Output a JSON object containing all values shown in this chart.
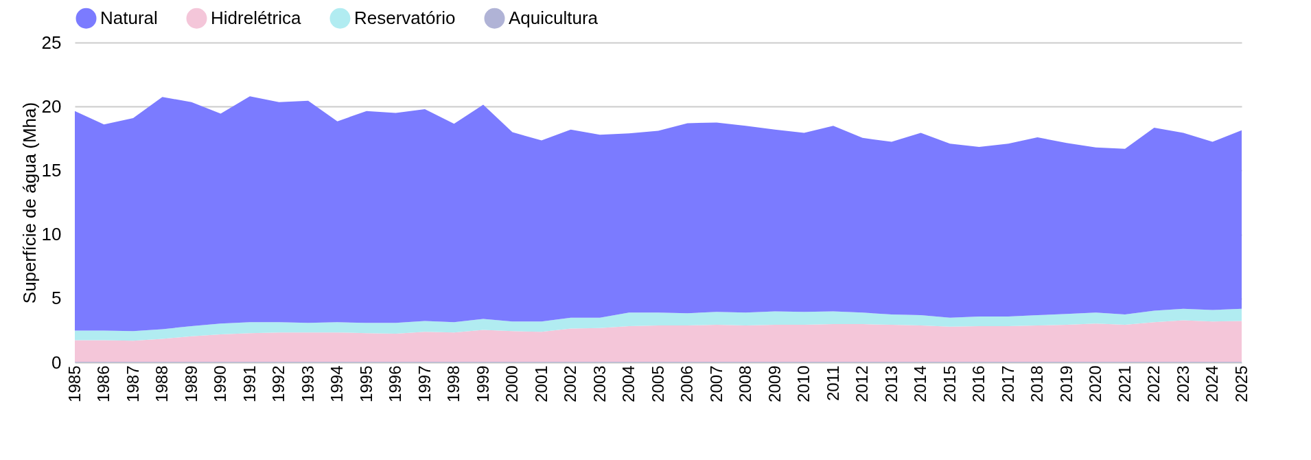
{
  "chart_data": {
    "type": "area",
    "stacked": true,
    "ylabel": "Superfície de água (Mha)",
    "categories": [
      "1985",
      "1986",
      "1987",
      "1988",
      "1989",
      "1990",
      "1991",
      "1992",
      "1993",
      "1994",
      "1995",
      "1996",
      "1997",
      "1998",
      "1999",
      "2000",
      "2001",
      "2002",
      "2003",
      "2004",
      "2005",
      "2006",
      "2007",
      "2008",
      "2009",
      "2010",
      "2011",
      "2012",
      "2013",
      "2014",
      "2015",
      "2016",
      "2017",
      "2018",
      "2019",
      "2020",
      "2021",
      "2022",
      "2023",
      "2024",
      "2025"
    ],
    "series": [
      {
        "name": "Aquicultura",
        "color": "#b0b3d6",
        "values": [
          0.05,
          0.05,
          0.05,
          0.05,
          0.05,
          0.05,
          0.05,
          0.05,
          0.05,
          0.05,
          0.05,
          0.05,
          0.05,
          0.05,
          0.05,
          0.05,
          0.05,
          0.05,
          0.05,
          0.05,
          0.05,
          0.05,
          0.05,
          0.05,
          0.05,
          0.05,
          0.05,
          0.05,
          0.05,
          0.05,
          0.05,
          0.05,
          0.05,
          0.05,
          0.05,
          0.05,
          0.05,
          0.05,
          0.05,
          0.05,
          0.05
        ]
      },
      {
        "name": "Hidrelétrica",
        "color": "#f4c6d9",
        "values": [
          1.7,
          1.7,
          1.65,
          1.8,
          2.0,
          2.15,
          2.25,
          2.3,
          2.3,
          2.3,
          2.25,
          2.2,
          2.35,
          2.3,
          2.5,
          2.4,
          2.35,
          2.6,
          2.65,
          2.8,
          2.85,
          2.85,
          2.9,
          2.85,
          2.9,
          2.9,
          2.95,
          2.95,
          2.9,
          2.85,
          2.75,
          2.8,
          2.8,
          2.85,
          2.9,
          3.0,
          2.9,
          3.1,
          3.25,
          3.15,
          3.2
        ]
      },
      {
        "name": "Reservatório",
        "color": "#b1ecf1",
        "values": [
          0.75,
          0.75,
          0.75,
          0.75,
          0.8,
          0.85,
          0.85,
          0.8,
          0.75,
          0.8,
          0.8,
          0.85,
          0.85,
          0.8,
          0.85,
          0.75,
          0.8,
          0.85,
          0.8,
          1.05,
          1.0,
          0.95,
          1.0,
          1.0,
          1.05,
          1.0,
          1.0,
          0.9,
          0.8,
          0.8,
          0.7,
          0.75,
          0.75,
          0.8,
          0.85,
          0.85,
          0.8,
          0.9,
          0.9,
          0.9,
          0.95
        ]
      },
      {
        "name": "Natural",
        "color": "#7b7bff",
        "values": [
          17.15,
          16.1,
          16.65,
          18.15,
          17.5,
          16.4,
          17.65,
          17.2,
          17.35,
          15.7,
          16.55,
          16.4,
          16.55,
          15.5,
          16.75,
          14.8,
          14.15,
          14.7,
          14.3,
          14.0,
          14.2,
          14.85,
          14.8,
          14.6,
          14.2,
          14.0,
          14.5,
          13.65,
          13.5,
          14.25,
          13.6,
          13.25,
          13.5,
          13.9,
          13.35,
          12.9,
          12.95,
          14.3,
          13.75,
          13.15,
          13.95
        ]
      }
    ],
    "ylim": [
      0,
      25
    ],
    "yticks": [
      0,
      5,
      10,
      15,
      20,
      25
    ],
    "grid": "y",
    "legend": "top"
  }
}
